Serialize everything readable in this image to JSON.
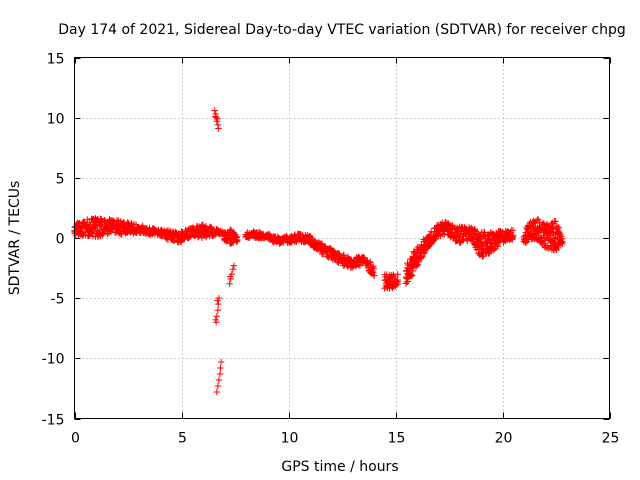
{
  "chart_data": {
    "type": "scatter",
    "title": "Day 174 of 2021, Sidereal Day-to-day VTEC variation (SDTVAR) for receiver chpg",
    "xlabel": "GPS time / hours",
    "ylabel": "SDTVAR / TECUs",
    "xlim": [
      0,
      25
    ],
    "ylim": [
      -15,
      15
    ],
    "xticks": [
      0,
      5,
      10,
      15,
      20,
      25
    ],
    "yticks": [
      -15,
      -10,
      -5,
      0,
      5,
      10,
      15
    ],
    "xtick_labels": [
      "0",
      "5",
      "10",
      "15",
      "20",
      "25"
    ],
    "ytick_labels": [
      "-15",
      "-10",
      "-5",
      "0",
      "5",
      "10",
      "15"
    ],
    "grid": true,
    "marker": "+",
    "color": "#ff0000",
    "series": [
      {
        "name": "chpg",
        "bands": [
          {
            "x": [
              0.0,
              0.5,
              1.0,
              1.5,
              2.0,
              2.5,
              3.0,
              3.5,
              4.0,
              4.5,
              5.0
            ],
            "lo": [
              0.2,
              0.2,
              0.1,
              0.2,
              0.3,
              0.3,
              0.4,
              0.3,
              0.2,
              -0.3,
              -0.4
            ],
            "hi": [
              1.2,
              1.5,
              1.7,
              1.6,
              1.5,
              1.3,
              1.1,
              0.9,
              0.7,
              0.6,
              0.4
            ]
          },
          {
            "x": [
              5.0,
              5.5,
              6.0,
              6.5,
              7.0
            ],
            "lo": [
              -0.2,
              0.1,
              0.0,
              0.2,
              0.3
            ],
            "hi": [
              0.6,
              0.9,
              1.1,
              0.9,
              0.5
            ]
          },
          {
            "x": [
              7.0,
              7.3,
              7.6
            ],
            "lo": [
              -0.2,
              -0.5,
              -0.3
            ],
            "hi": [
              0.5,
              0.7,
              0.3
            ]
          },
          {
            "x": [
              8.0,
              8.5,
              9.0,
              9.5,
              10.0,
              10.5,
              11.0,
              11.5,
              12.0,
              12.5,
              13.0,
              13.5,
              14.0
            ],
            "lo": [
              0.0,
              0.0,
              -0.1,
              -0.6,
              -0.5,
              -0.3,
              -0.6,
              -1.3,
              -1.8,
              -2.3,
              -2.5,
              -2.3,
              -3.2
            ],
            "hi": [
              0.5,
              0.6,
              0.4,
              0.1,
              0.2,
              0.4,
              0.2,
              -0.4,
              -0.9,
              -1.4,
              -1.6,
              -1.4,
              -2.3
            ]
          },
          {
            "x": [
              14.5,
              14.8,
              15.1
            ],
            "lo": [
              -4.2,
              -4.2,
              -4.0
            ],
            "hi": [
              -2.9,
              -3.1,
              -2.9
            ]
          },
          {
            "x": [
              15.5,
              16.0,
              16.5,
              17.0,
              17.5
            ],
            "lo": [
              -4.0,
              -2.4,
              -0.9,
              0.1,
              0.3
            ],
            "hi": [
              -2.0,
              -0.8,
              0.3,
              1.2,
              1.5
            ]
          },
          {
            "x": [
              17.5,
              18.0,
              18.5,
              19.0,
              19.5,
              20.0,
              20.5
            ],
            "lo": [
              0.0,
              -0.4,
              -0.3,
              -1.6,
              -1.3,
              -0.4,
              -0.1
            ],
            "hi": [
              1.1,
              1.0,
              0.9,
              0.5,
              0.5,
              0.6,
              0.7
            ]
          },
          {
            "x": [
              21.0,
              21.5,
              22.0,
              22.5,
              22.8
            ],
            "lo": [
              -0.5,
              -0.1,
              -0.8,
              -1.1,
              -0.5
            ],
            "hi": [
              0.6,
              1.9,
              1.1,
              1.5,
              0.0
            ]
          }
        ],
        "points": [
          {
            "x": 6.55,
            "y": 10.6
          },
          {
            "x": 6.6,
            "y": 10.3
          },
          {
            "x": 6.62,
            "y": 10.0
          },
          {
            "x": 6.65,
            "y": 9.7
          },
          {
            "x": 6.7,
            "y": 9.4
          },
          {
            "x": 6.72,
            "y": 9.1
          },
          {
            "x": 6.68,
            "y": 9.9
          },
          {
            "x": 6.58,
            "y": 10.1
          },
          {
            "x": 6.75,
            "y": -5.0
          },
          {
            "x": 6.72,
            "y": -5.5
          },
          {
            "x": 6.7,
            "y": -6.0
          },
          {
            "x": 6.65,
            "y": -6.5
          },
          {
            "x": 6.62,
            "y": -7.0
          },
          {
            "x": 6.6,
            "y": -6.8
          },
          {
            "x": 6.68,
            "y": -5.2
          },
          {
            "x": 6.85,
            "y": -10.3
          },
          {
            "x": 6.82,
            "y": -10.8
          },
          {
            "x": 6.8,
            "y": -11.3
          },
          {
            "x": 6.75,
            "y": -11.8
          },
          {
            "x": 6.7,
            "y": -12.3
          },
          {
            "x": 6.65,
            "y": -12.8
          },
          {
            "x": 7.25,
            "y": -3.8
          },
          {
            "x": 7.3,
            "y": -3.4
          },
          {
            "x": 7.35,
            "y": -3.0
          },
          {
            "x": 7.4,
            "y": -2.6
          },
          {
            "x": 7.45,
            "y": -2.3
          },
          {
            "x": 7.28,
            "y": -3.2
          }
        ]
      }
    ]
  }
}
